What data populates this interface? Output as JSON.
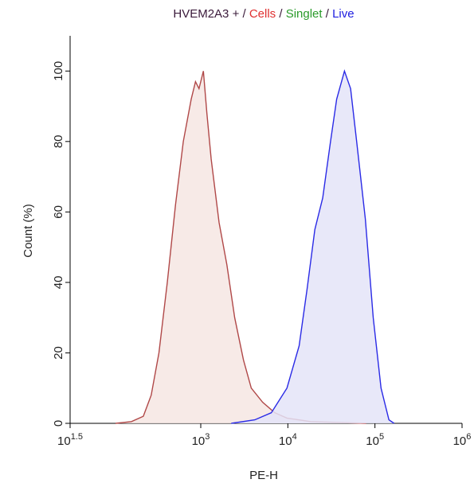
{
  "chart_data": {
    "type": "histogram_overlay",
    "title_parts": [
      {
        "text": "HVEM2A3 + /",
        "color": "#3a1a3a"
      },
      {
        "text": " Cells",
        "color": "#e03030"
      },
      {
        "text": " /",
        "color": "#3a1a3a"
      },
      {
        "text": " Singlet",
        "color": "#2a9a2a"
      },
      {
        "text": " /",
        "color": "#3a1a3a"
      },
      {
        "text": " Live",
        "color": "#2020e0"
      }
    ],
    "x_label": "PE-H",
    "y_label": "Count (%)",
    "x_scale": "log",
    "xlim": [
      31.6228,
      1000000
    ],
    "ylim": [
      0,
      110
    ],
    "xticks": [
      {
        "value": 31.6228,
        "label": "10",
        "sup": "1.5"
      },
      {
        "value": 1000,
        "label": "10",
        "sup": "3"
      },
      {
        "value": 10000,
        "label": "10",
        "sup": "4"
      },
      {
        "value": 100000,
        "label": "10",
        "sup": "5"
      },
      {
        "value": 1000000,
        "label": "10",
        "sup": "6"
      }
    ],
    "yticks": [
      0,
      20,
      40,
      60,
      80,
      100
    ],
    "series": [
      {
        "color": "#b04848",
        "fill": "#f6e6e3",
        "x": [
          105,
          160,
          219,
          270,
          331,
          413,
          513,
          631,
          776,
          871,
          955,
          1072,
          1175,
          1318,
          1622,
          1995,
          2455,
          3090,
          3802,
          5129,
          7079,
          9772,
          18197,
          79433
        ],
        "values": [
          0,
          0.5,
          2,
          8,
          20,
          40,
          62,
          80,
          92,
          97,
          95,
          100,
          88,
          75,
          57,
          45,
          30,
          18,
          10,
          6,
          3,
          1.5,
          0.5,
          0
        ]
      },
      {
        "color": "#2a2ae6",
        "fill": "#e4e4f8",
        "x": [
          2239,
          4169,
          6457,
          9772,
          13490,
          16596,
          20417,
          25119,
          30903,
          36308,
          44668,
          52481,
          61660,
          77625,
          95499,
          117490,
          144544,
          165959
        ],
        "values": [
          0,
          1,
          3,
          10,
          22,
          38,
          55,
          64,
          80,
          92,
          100,
          95,
          80,
          58,
          30,
          10,
          1,
          0
        ]
      }
    ]
  }
}
